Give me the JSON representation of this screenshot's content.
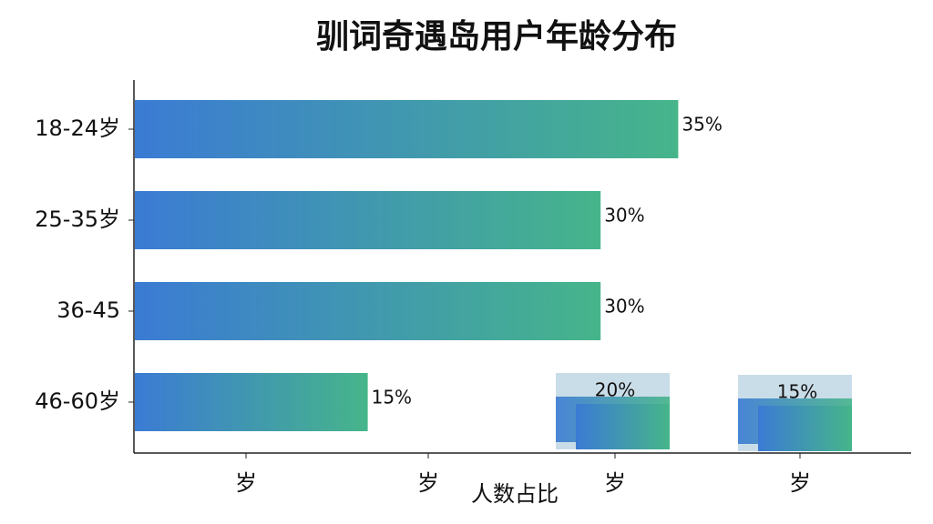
{
  "chart_data": {
    "type": "hbar",
    "title": "驯词奇遇岛用户年龄分布",
    "categories": [
      "18-24岁",
      "25-35岁",
      "36-45",
      "46-60岁"
    ],
    "values": [
      35,
      30,
      30,
      15
    ],
    "value_labels": [
      "35%",
      "30%",
      "30%",
      "15%"
    ],
    "xlim": [
      0,
      50
    ],
    "x_tick_labels": [
      "岁",
      "岁",
      "岁",
      "岁"
    ],
    "xlabel": "人数占比",
    "annotations": [
      "20%",
      "15%"
    ],
    "color_start": "#3b7bd4",
    "color_end": "#46b58a"
  }
}
